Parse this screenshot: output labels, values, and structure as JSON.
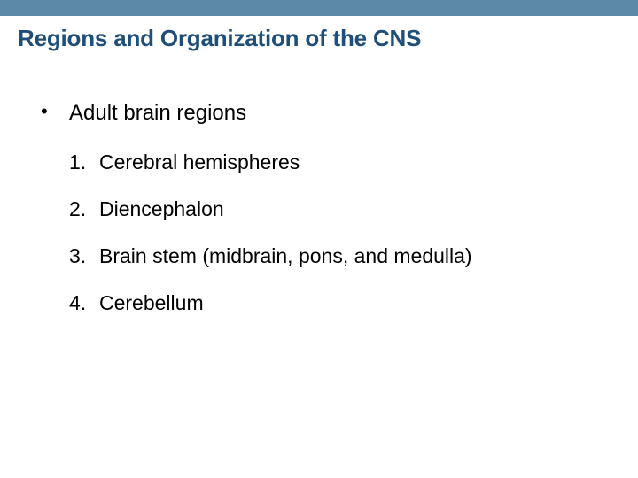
{
  "colors": {
    "header_bar": "#5b89a6",
    "title": "#1f4e79",
    "body_text": "#000000",
    "background": "#ffffff"
  },
  "typography": {
    "title_fontsize": 26,
    "title_fontweight": "bold",
    "bullet_fontsize": 24,
    "list_fontsize": 23,
    "font_family": "Arial"
  },
  "title": "Regions and Organization of the CNS",
  "bullet": {
    "marker": "•",
    "text": "Adult brain regions"
  },
  "list": [
    {
      "num": "1.",
      "text": "Cerebral hemispheres"
    },
    {
      "num": "2.",
      "text": "Diencephalon"
    },
    {
      "num": "3.",
      "text": "Brain stem (midbrain, pons, and medulla)"
    },
    {
      "num": "4.",
      "text": "Cerebellum"
    }
  ]
}
